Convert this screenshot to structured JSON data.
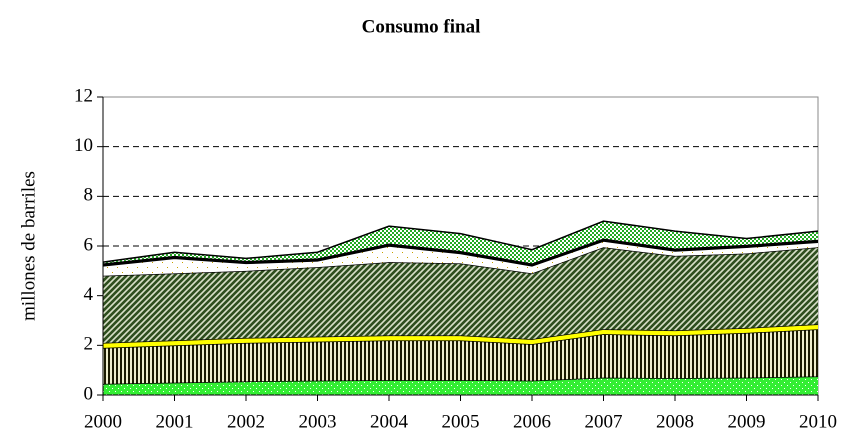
{
  "chart_data": {
    "type": "stacked_area",
    "title": "Consumo final",
    "ylabel": "millones de barriles",
    "x": [
      2000,
      2001,
      2002,
      2003,
      2004,
      2005,
      2006,
      2007,
      2008,
      2009,
      2010
    ],
    "xlim": [
      2000,
      2010
    ],
    "xticks": [
      2000,
      2001,
      2002,
      2003,
      2004,
      2005,
      2006,
      2007,
      2008,
      2009,
      2010
    ],
    "ylim": [
      0,
      12
    ],
    "yticks": [
      0,
      2,
      4,
      6,
      8,
      10,
      12
    ],
    "grid": true,
    "series": [
      {
        "color": "#33ee33",
        "pattern": "dots",
        "values": [
          0.45,
          0.5,
          0.55,
          0.58,
          0.6,
          0.6,
          0.58,
          0.7,
          0.68,
          0.7,
          0.75
        ]
      },
      {
        "color": "#1a1a00",
        "pattern": "vertical",
        "values": [
          1.45,
          1.5,
          1.55,
          1.57,
          1.6,
          1.6,
          1.47,
          1.75,
          1.72,
          1.8,
          1.9
        ]
      },
      {
        "color": "#ffff00",
        "pattern": "solid",
        "values": [
          0.2,
          0.2,
          0.2,
          0.2,
          0.2,
          0.2,
          0.2,
          0.2,
          0.2,
          0.2,
          0.2
        ]
      },
      {
        "color": "#2f4f1f",
        "pattern": "diagonal",
        "values": [
          2.7,
          2.7,
          2.7,
          2.8,
          2.95,
          2.9,
          2.65,
          3.3,
          3.0,
          3.0,
          3.1
        ]
      },
      {
        "color": "#c8a000",
        "pattern": "sparse-dots",
        "values": [
          0.4,
          0.6,
          0.3,
          0.25,
          0.65,
          0.4,
          0.3,
          0.25,
          0.2,
          0.25,
          0.2
        ]
      },
      {
        "color": "#000000",
        "pattern": "solid",
        "values": [
          0.1,
          0.1,
          0.1,
          0.1,
          0.1,
          0.1,
          0.1,
          0.1,
          0.1,
          0.1,
          0.1
        ]
      },
      {
        "color": "#22aa22",
        "pattern": "checker",
        "values": [
          0.05,
          0.15,
          0.1,
          0.25,
          0.7,
          0.7,
          0.55,
          0.7,
          0.7,
          0.25,
          0.35
        ]
      }
    ]
  }
}
